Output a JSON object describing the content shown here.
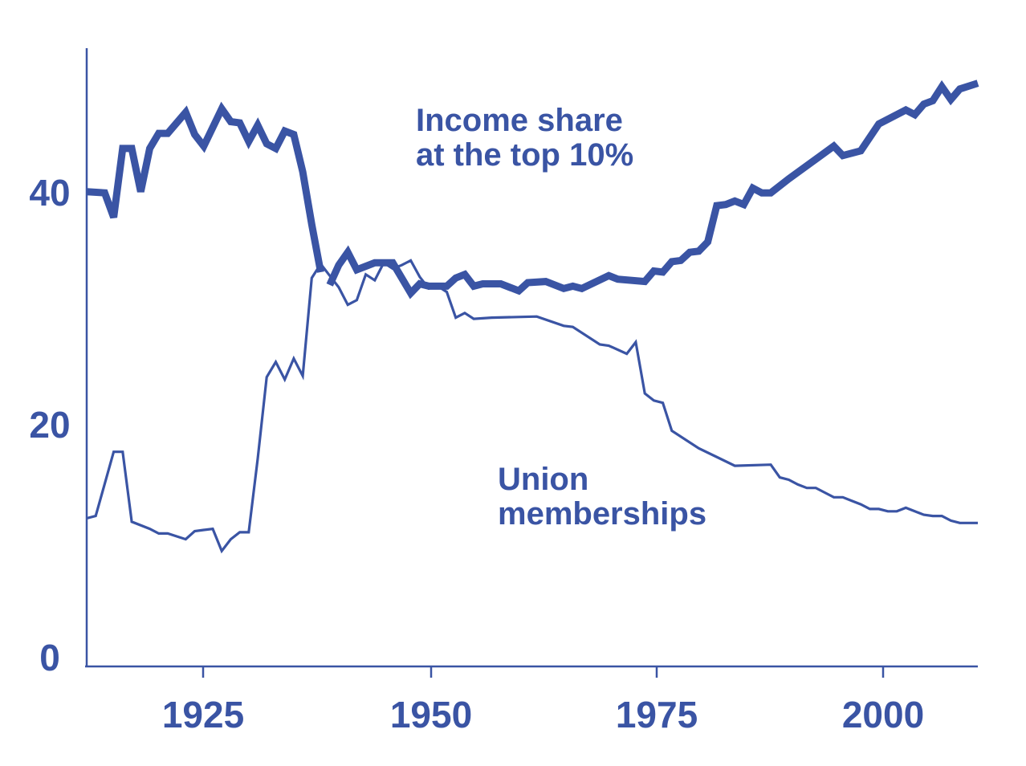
{
  "chart_data": {
    "type": "line",
    "title": "",
    "xlabel": "",
    "ylabel": "",
    "xlim": [
      1912,
      2011
    ],
    "ylim": [
      0,
      53
    ],
    "x_ticks": [
      "1925",
      "1950",
      "1975",
      "2000"
    ],
    "y_ticks": [
      "0",
      "20",
      "40"
    ],
    "colors": {
      "line": "#3a54a4",
      "text": "#3a54a4",
      "background": "#ffffff"
    },
    "series": [
      {
        "name": "Income share at the top 10%",
        "name_lines": [
          "Income share",
          "at the top 10%"
        ],
        "style": "thick",
        "points": [
          [
            1912,
            40.7
          ],
          [
            1914,
            40.6
          ],
          [
            1915,
            38.5
          ],
          [
            1916,
            44.4
          ],
          [
            1917,
            44.4
          ],
          [
            1918,
            40.7
          ],
          [
            1919,
            44.4
          ],
          [
            1920,
            45.7
          ],
          [
            1921,
            45.7
          ],
          [
            1923,
            47.5
          ],
          [
            1924,
            45.6
          ],
          [
            1925,
            44.6
          ],
          [
            1927,
            47.8
          ],
          [
            1928,
            46.7
          ],
          [
            1929,
            46.6
          ],
          [
            1930,
            45.0
          ],
          [
            1931,
            46.4
          ],
          [
            1932,
            44.8
          ],
          [
            1933,
            44.4
          ],
          [
            1934,
            45.9
          ],
          [
            1935,
            45.6
          ],
          [
            1936,
            42.4
          ],
          [
            1937,
            37.9
          ],
          [
            1938,
            33.8
          ],
          null,
          [
            1939,
            32.7
          ],
          [
            1940,
            34.4
          ],
          [
            1941,
            35.5
          ],
          [
            1942,
            34.0
          ],
          [
            1944,
            34.6
          ],
          [
            1946,
            34.6
          ],
          [
            1948,
            32.0
          ],
          [
            1949,
            32.8
          ],
          [
            1950,
            32.6
          ],
          [
            1952,
            32.6
          ],
          [
            1953,
            33.3
          ],
          [
            1954,
            33.6
          ],
          [
            1955,
            32.6
          ],
          [
            1956,
            32.8
          ],
          [
            1958,
            32.8
          ],
          [
            1960,
            32.2
          ],
          [
            1961,
            32.9
          ],
          [
            1963,
            33.0
          ],
          [
            1965,
            32.4
          ],
          [
            1966,
            32.6
          ],
          [
            1967,
            32.4
          ],
          [
            1970,
            33.5
          ],
          [
            1971,
            33.2
          ],
          [
            1974,
            33.0
          ],
          [
            1975,
            33.9
          ],
          [
            1976,
            33.8
          ],
          [
            1977,
            34.7
          ],
          [
            1978,
            34.8
          ],
          [
            1979,
            35.5
          ],
          [
            1980,
            35.6
          ],
          [
            1981,
            36.4
          ],
          [
            1982,
            39.5
          ],
          [
            1983,
            39.6
          ],
          [
            1984,
            39.9
          ],
          [
            1985,
            39.6
          ],
          [
            1986,
            41.0
          ],
          [
            1987,
            40.6
          ],
          [
            1988,
            40.6
          ],
          [
            1990,
            41.8
          ],
          [
            1995,
            44.6
          ],
          [
            1996,
            43.8
          ],
          [
            1998,
            44.2
          ],
          [
            2000,
            46.5
          ],
          [
            2003,
            47.7
          ],
          [
            2004,
            47.3
          ],
          [
            2005,
            48.2
          ],
          [
            2006,
            48.5
          ],
          [
            2007,
            49.7
          ],
          [
            2008,
            48.6
          ],
          [
            2009,
            49.5
          ],
          [
            2011,
            50.0
          ]
        ]
      },
      {
        "name": "Union memberships",
        "name_lines": [
          "Union",
          "memberships"
        ],
        "style": "thin",
        "points": [
          [
            1912,
            12.7
          ],
          [
            1913,
            12.9
          ],
          [
            1915,
            18.4
          ],
          [
            1916,
            18.4
          ],
          [
            1917,
            12.4
          ],
          [
            1919,
            11.8
          ],
          [
            1920,
            11.4
          ],
          [
            1921,
            11.4
          ],
          [
            1923,
            10.9
          ],
          [
            1924,
            11.6
          ],
          [
            1925,
            11.7
          ],
          [
            1926,
            11.8
          ],
          [
            1927,
            9.9
          ],
          [
            1928,
            10.9
          ],
          [
            1929,
            11.5
          ],
          [
            1930,
            11.5
          ],
          [
            1931,
            17.8
          ],
          [
            1932,
            24.8
          ],
          [
            1933,
            26.1
          ],
          [
            1934,
            24.6
          ],
          [
            1935,
            26.4
          ],
          [
            1936,
            24.9
          ],
          [
            1937,
            33.3
          ],
          [
            1938,
            34.5
          ],
          [
            1939,
            33.5
          ],
          [
            1940,
            32.5
          ],
          [
            1941,
            31.0
          ],
          [
            1942,
            31.4
          ],
          [
            1943,
            33.6
          ],
          [
            1944,
            33.1
          ],
          [
            1945,
            34.6
          ],
          [
            1946,
            34.1
          ],
          [
            1947,
            34.4
          ],
          [
            1948,
            34.8
          ],
          [
            1949,
            33.4
          ],
          [
            1950,
            32.4
          ],
          [
            1951,
            32.6
          ],
          [
            1952,
            32.1
          ],
          [
            1953,
            29.9
          ],
          [
            1954,
            30.3
          ],
          [
            1955,
            29.8
          ],
          [
            1957,
            29.9
          ],
          [
            1962,
            30.0
          ],
          [
            1965,
            29.2
          ],
          [
            1966,
            29.1
          ],
          [
            1969,
            27.6
          ],
          [
            1970,
            27.5
          ],
          [
            1972,
            26.8
          ],
          [
            1973,
            27.8
          ],
          [
            1974,
            23.4
          ],
          [
            1975,
            22.8
          ],
          [
            1976,
            22.6
          ],
          [
            1977,
            20.2
          ],
          [
            1980,
            18.7
          ],
          [
            1984,
            17.2
          ],
          [
            1988,
            17.3
          ],
          [
            1989,
            16.2
          ],
          [
            1990,
            16.0
          ],
          [
            1991,
            15.6
          ],
          [
            1992,
            15.3
          ],
          [
            1993,
            15.3
          ],
          [
            1994,
            14.9
          ],
          [
            1995,
            14.5
          ],
          [
            1996,
            14.5
          ],
          [
            1997,
            14.2
          ],
          [
            1998,
            13.9
          ],
          [
            1999,
            13.5
          ],
          [
            2000,
            13.5
          ],
          [
            2001,
            13.3
          ],
          [
            2002,
            13.3
          ],
          [
            2003,
            13.6
          ],
          [
            2004,
            13.3
          ],
          [
            2005,
            13.0
          ],
          [
            2006,
            12.9
          ],
          [
            2007,
            12.9
          ],
          [
            2008,
            12.5
          ],
          [
            2009,
            12.3
          ],
          [
            2010,
            12.3
          ],
          [
            2011,
            12.3
          ]
        ]
      }
    ]
  }
}
